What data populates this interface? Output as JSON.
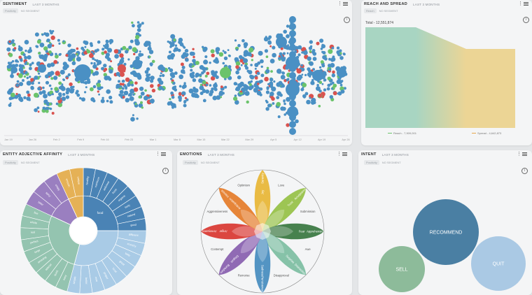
{
  "sentiment": {
    "title": "SENTIMENT",
    "subtitle": "LAST 3 MONTHS",
    "chip": "Positivity",
    "chip_label": "NO SEGMENT",
    "dates": [
      "Jan 19",
      "Jan 26",
      "Feb 2",
      "Feb 9",
      "Feb 16",
      "Feb 23",
      "Mar 1",
      "Mar 8",
      "Mar 15",
      "Mar 22",
      "Mar 29",
      "Apr 5",
      "Apr 12",
      "Apr 19",
      "Apr 26"
    ],
    "colors": {
      "neutral": "#4a90c4",
      "positive": "#6bc36b",
      "negative": "#d9534f"
    }
  },
  "reach": {
    "title": "REACH AND SPREAD",
    "subtitle": "LAST 3 MONTHS",
    "chip": "Reach",
    "chip_label": "NO SEGMENT",
    "total_label": "Total - 12,551,874",
    "reach_label": "Reach - 7,909,001",
    "spread_label": "Spread - 4,642,873",
    "chart_data": {
      "type": "area",
      "title": "",
      "series": [
        {
          "name": "Reach",
          "values": [
            7909001
          ]
        },
        {
          "name": "Spread",
          "values": [
            4642873
          ]
        }
      ],
      "total": 12551874
    },
    "colors": {
      "reach": "#a8d5c2",
      "mid": "#c9d5a8",
      "spread": "#ecd595"
    }
  },
  "entity": {
    "title": "ENTITY ADJECTIVE AFFINITY",
    "subtitle": "LAST 3 MONTHS",
    "chip": "Positivity",
    "chip_label": "NO SEGMENT",
    "inner": [
      {
        "label": "food",
        "color": "#4a83b5",
        "value": 90
      },
      {
        "label": "",
        "color": "#a9cbe6",
        "value": 105
      },
      {
        "label": "",
        "color": "#94c4b0",
        "value": 100
      },
      {
        "label": "",
        "color": "#9a7fc0",
        "value": 40
      },
      {
        "label": "",
        "color": "#e5b156",
        "value": 25
      }
    ],
    "outer_labels": [
      "healthy",
      "nutritious",
      "delicious",
      "fresh",
      "organic",
      "tasty",
      "natural",
      "good",
      "different",
      "crunchy",
      "tasty",
      "great",
      "local",
      "proper",
      "new",
      "better",
      "simple",
      "easy",
      "quick",
      "special",
      "amazing",
      "large",
      "perfect",
      "real",
      "whole",
      "fine",
      "bitter",
      "spicy",
      "crispy",
      "smooth",
      "unique"
    ],
    "colors": {
      "blue": "#4a83b5",
      "lightblue": "#a9cbe6",
      "teal": "#94c4b0",
      "purple": "#9a7fc0",
      "orange": "#e5b156"
    }
  },
  "emotions": {
    "title": "EMOTIONS",
    "subtitle": "LAST 3 MONTHS",
    "chip": "Positivity",
    "chip_label": "NO SEGMENT",
    "petals": [
      {
        "name": "Joy",
        "color": "#e8b73a",
        "labels": [
          "Joy",
          "Serenity"
        ]
      },
      {
        "name": "Trust",
        "color": "#98c24a",
        "labels": [
          "Trust",
          "Acceptance"
        ]
      },
      {
        "name": "Fear",
        "color": "#3d7a44",
        "labels": [
          "Fear",
          "Apprehension"
        ]
      },
      {
        "name": "Surprise",
        "color": "#7fbfa3",
        "labels": [
          "Surprise",
          "Distraction"
        ]
      },
      {
        "name": "Sadness",
        "color": "#4a8ec0",
        "labels": [
          "Sadness",
          "Pensiveness"
        ]
      },
      {
        "name": "Disgust",
        "color": "#8a62b0",
        "labels": [
          "Disgust",
          "Boredom"
        ]
      },
      {
        "name": "Anger",
        "color": "#d93c36",
        "labels": [
          "Anger",
          "Annoyance"
        ]
      },
      {
        "name": "Anticipation",
        "color": "#e57e2e",
        "labels": [
          "Anticipation",
          "Interest"
        ]
      }
    ],
    "ring_labels": [
      "Love",
      "Submission",
      "Awe",
      "Disapproval",
      "Remorse",
      "Contempt",
      "Aggressiveness",
      "Optimism"
    ]
  },
  "intent": {
    "title": "INTENT",
    "subtitle": "LAST 3 MONTHS",
    "chip": "Positivity",
    "chip_label": "NO SEGMENT",
    "bubbles": [
      {
        "label": "RECOMMEND",
        "color": "#4a7fa3",
        "value": 1.0
      },
      {
        "label": "SELL",
        "color": "#8dbb9a",
        "value": 0.5
      },
      {
        "label": "QUIT",
        "color": "#aac9e4",
        "value": 0.65
      }
    ]
  }
}
